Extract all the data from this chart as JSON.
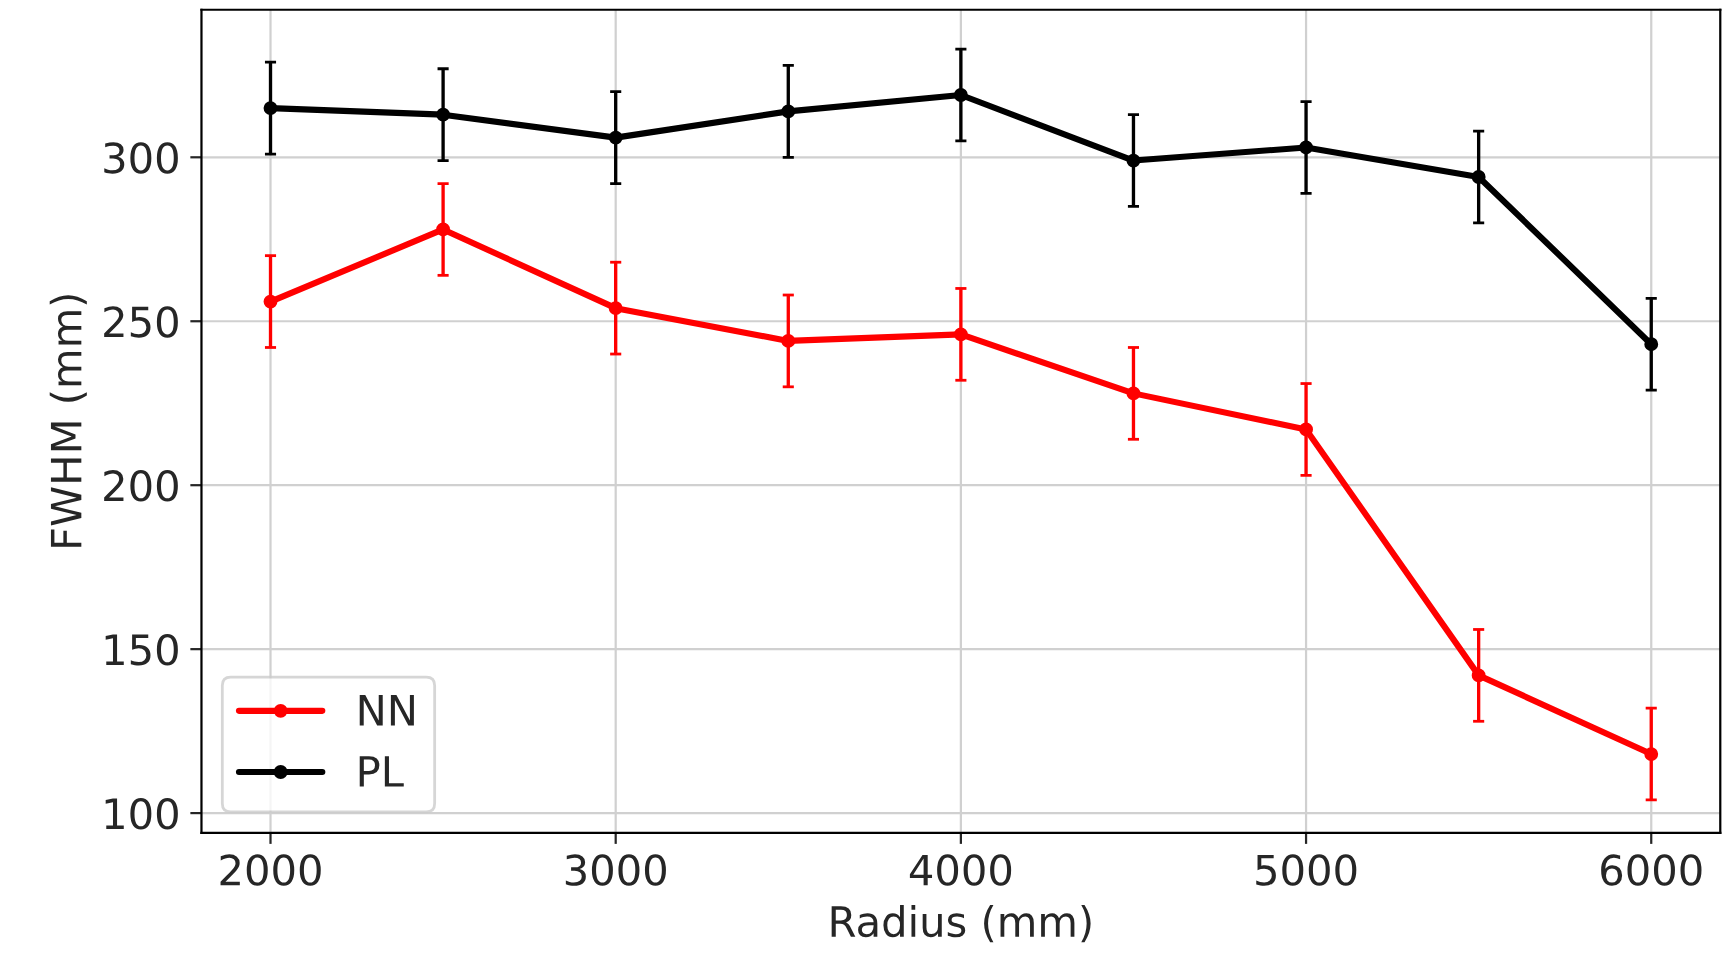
{
  "chart_data": {
    "type": "line",
    "xlabel": "Radius (mm)",
    "ylabel": "FWHM (mm)",
    "x": [
      2000,
      2500,
      3000,
      3500,
      4000,
      4500,
      5000,
      5500,
      6000
    ],
    "series": [
      {
        "name": "NN",
        "color": "#ff0000",
        "values": [
          256,
          278,
          254,
          244,
          246,
          228,
          217,
          142,
          118
        ],
        "errors": [
          14,
          14,
          14,
          14,
          14,
          14,
          14,
          14,
          14
        ]
      },
      {
        "name": "PL",
        "color": "#000000",
        "values": [
          315,
          313,
          306,
          314,
          319,
          299,
          303,
          294,
          243
        ],
        "errors": [
          14,
          14,
          14,
          14,
          14,
          14,
          14,
          14,
          14
        ]
      }
    ],
    "xlim": [
      1800,
      6200
    ],
    "xticks": [
      2000,
      3000,
      4000,
      5000,
      6000
    ],
    "ylim": [
      94,
      345
    ],
    "yticks": [
      100,
      150,
      200,
      250,
      300
    ],
    "grid": true,
    "legend": "bottom left",
    "marker": "circle",
    "line_style": "solid"
  }
}
